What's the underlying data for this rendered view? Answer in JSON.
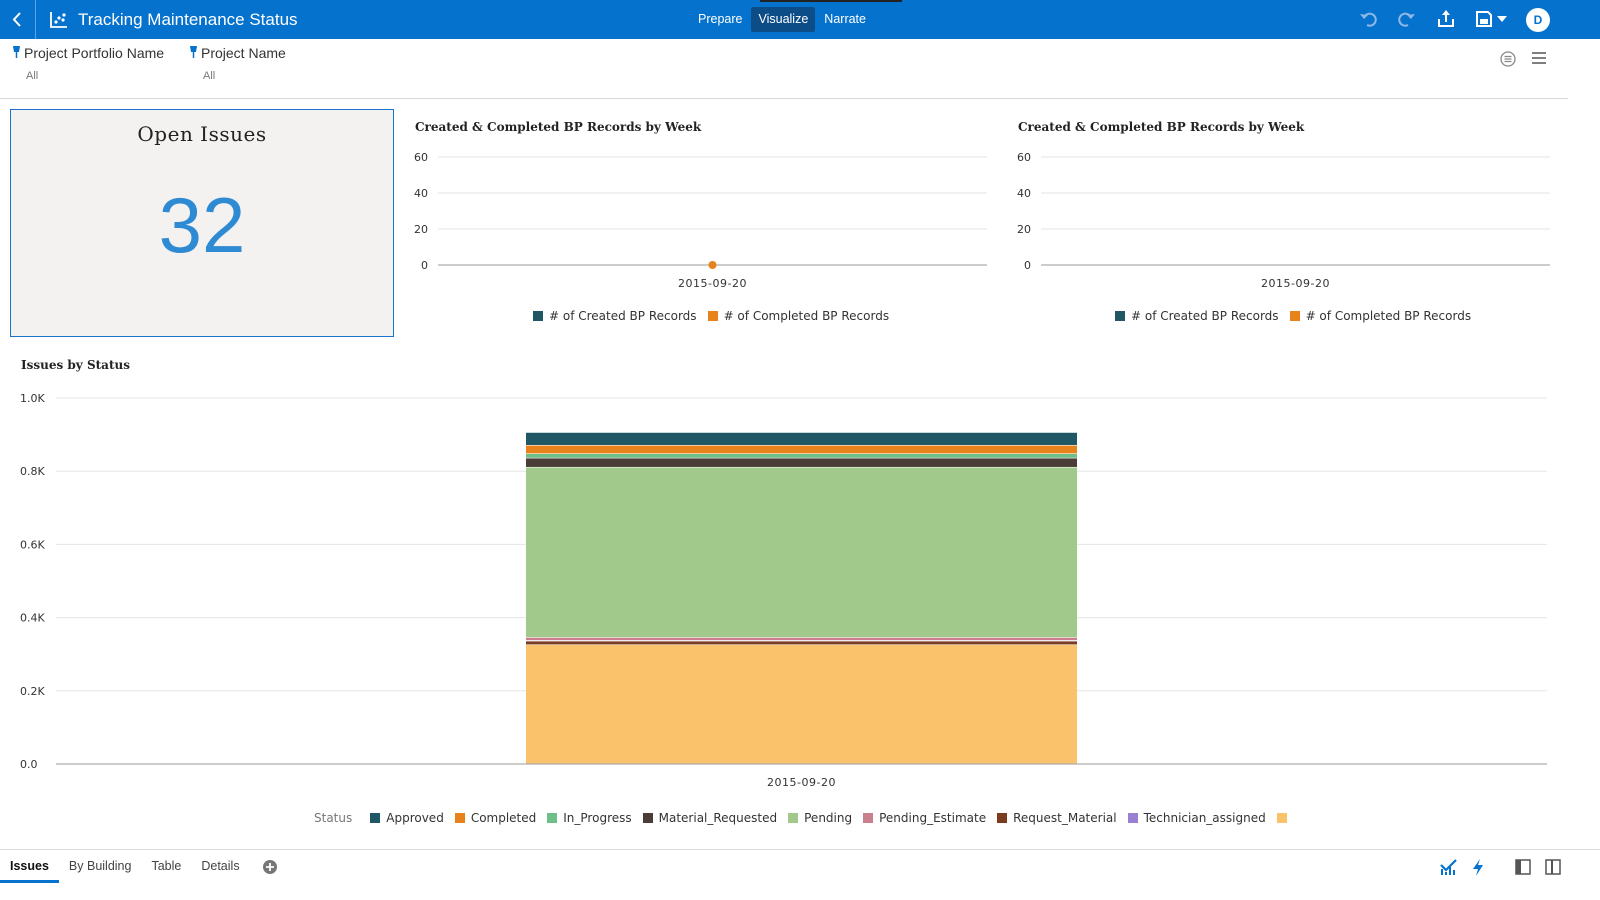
{
  "header": {
    "title": "Tracking Maintenance Status",
    "modes": [
      {
        "label": "Prepare",
        "active": false
      },
      {
        "label": "Visualize",
        "active": true
      },
      {
        "label": "Narrate",
        "active": false
      }
    ],
    "avatar_initial": "D",
    "icons": [
      "back-icon",
      "app-visualization-icon",
      "undo-icon",
      "redo-icon",
      "export-icon",
      "save-icon",
      "chevron-down-icon"
    ],
    "accent": "#0572ce"
  },
  "filters": [
    {
      "name": "Project Portfolio Name",
      "value": "All"
    },
    {
      "name": "Project Name",
      "value": "All"
    }
  ],
  "kpi": {
    "title": "Open Issues",
    "value": "32",
    "value_color": "#2f8ad4"
  },
  "charts": {
    "week1": {
      "title": "Created & Completed BP Records by Week",
      "yticks": [
        "60",
        "40",
        "20",
        "0"
      ],
      "xtick": "2015-09-20",
      "legend": [
        "# of Created BP Records",
        "# of Completed BP Records"
      ]
    },
    "week2": {
      "title": "Created & Completed BP Records by Week",
      "yticks": [
        "60",
        "40",
        "20",
        "0"
      ],
      "xtick": "2015-09-20",
      "legend": [
        "# of Created BP Records",
        "# of Completed BP Records"
      ]
    },
    "status": {
      "title": "Issues by Status",
      "yticks": [
        "1.0K",
        "0.8K",
        "0.6K",
        "0.4K",
        "0.2K",
        "0.0"
      ],
      "xtick": "2015-09-20",
      "legend_title": "Status"
    }
  },
  "chart_data": [
    {
      "type": "line",
      "title": "Created & Completed BP Records by Week",
      "x": [
        "2015-09-20"
      ],
      "series": [
        {
          "name": "# of Created BP Records",
          "values": [
            null
          ],
          "color": "#1f5765"
        },
        {
          "name": "# of Completed BP Records",
          "values": [
            0
          ],
          "color": "#e8821b"
        }
      ],
      "ylim": [
        0,
        60
      ],
      "grid": true,
      "legend_position": "bottom"
    },
    {
      "type": "line",
      "title": "Created & Completed BP Records by Week",
      "x": [
        "2015-09-20"
      ],
      "series": [
        {
          "name": "# of Created BP Records",
          "values": [
            null
          ],
          "color": "#1f5765"
        },
        {
          "name": "# of Completed BP Records",
          "values": [
            null
          ],
          "color": "#e8821b"
        }
      ],
      "ylim": [
        0,
        60
      ],
      "grid": true,
      "legend_position": "bottom"
    },
    {
      "type": "bar",
      "stacked": true,
      "title": "Issues by Status",
      "categories": [
        "2015-09-20"
      ],
      "series": [
        {
          "name": "",
          "values": [
            325
          ],
          "color": "#f9c26b"
        },
        {
          "name": "Request_Material",
          "values": [
            10
          ],
          "color": "#7a3b1e"
        },
        {
          "name": "Technician_assigned",
          "values": [
            2
          ],
          "color": "#9b7fd1"
        },
        {
          "name": "Pending_Estimate",
          "values": [
            8
          ],
          "color": "#c97f8c"
        },
        {
          "name": "Pending",
          "values": [
            465
          ],
          "color": "#a2c98c"
        },
        {
          "name": "Material_Requested",
          "values": [
            25
          ],
          "color": "#4a3d36"
        },
        {
          "name": "In_Progress",
          "values": [
            12
          ],
          "color": "#6fc088"
        },
        {
          "name": "Completed",
          "values": [
            23
          ],
          "color": "#e8821b"
        },
        {
          "name": "Approved",
          "values": [
            35
          ],
          "color": "#1f5765"
        }
      ],
      "ylim": [
        0,
        1000
      ],
      "grid": true,
      "legend_position": "bottom"
    }
  ],
  "tabs": [
    {
      "label": "Issues",
      "active": true
    },
    {
      "label": "By Building",
      "active": false
    },
    {
      "label": "Table",
      "active": false
    },
    {
      "label": "Details",
      "active": false
    }
  ]
}
